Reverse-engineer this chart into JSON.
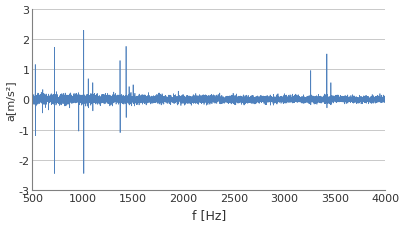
{
  "title": "",
  "xlabel": "f [Hz]",
  "ylabel": "a[m/s²]",
  "xlim": [
    500,
    4000
  ],
  "ylim": [
    -3,
    3
  ],
  "yticks": [
    -3,
    -2,
    -1,
    0,
    1,
    2,
    3
  ],
  "xticks": [
    500,
    1000,
    1500,
    2000,
    2500,
    3000,
    3500,
    4000
  ],
  "line_color": "#4F81BD",
  "bg_color": "#FFFFFF",
  "plot_bg_color": "#FFFFFF",
  "grid_color": "#C0C0C0",
  "spine_color": "#808080",
  "seed": 42,
  "n_points": 7000,
  "noise_base": 0.055,
  "noise_decay": 0.00025,
  "spike_freqs": [
    530,
    600,
    660,
    720,
    790,
    870,
    960,
    1010,
    1055,
    1100,
    1370,
    1430,
    1460,
    1500,
    3260,
    3420,
    3460
  ],
  "spike_amps_pos": [
    1.15,
    0.25,
    0.15,
    1.72,
    0.12,
    0.18,
    0.22,
    2.28,
    0.68,
    0.55,
    1.28,
    1.75,
    0.42,
    0.48,
    0.95,
    1.5,
    0.55
  ],
  "spike_amps_neg": [
    -1.2,
    -0.45,
    -0.35,
    -2.45,
    -0.18,
    -0.28,
    -1.05,
    -2.45,
    -0.28,
    -0.38,
    -1.1,
    -0.6,
    -0.18,
    -0.14,
    -0.18,
    -0.28,
    -0.18
  ],
  "xlabel_fontsize": 9,
  "ylabel_fontsize": 8,
  "tick_fontsize": 8
}
